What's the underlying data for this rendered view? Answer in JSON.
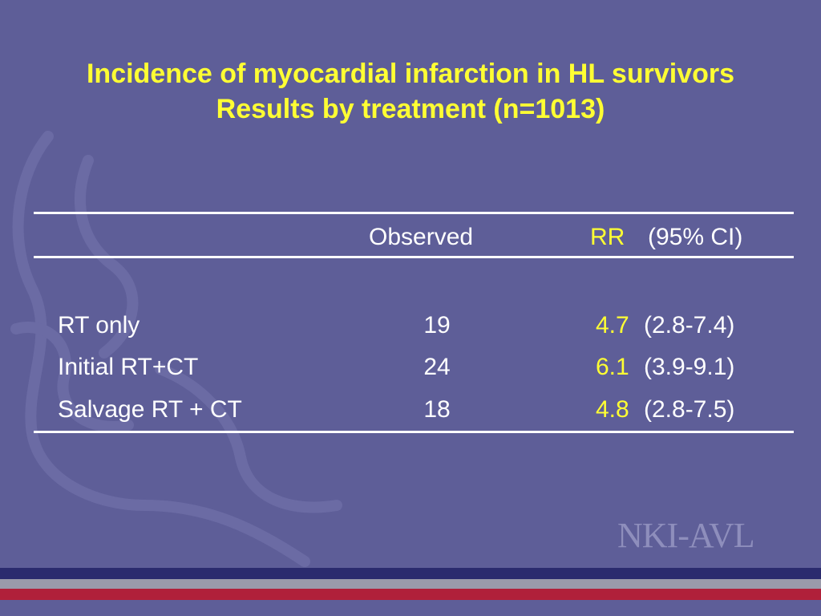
{
  "title": {
    "line1": "Incidence of myocardial infarction in HL survivors",
    "line2": "Results by treatment (n=1013)"
  },
  "table": {
    "headers": {
      "observed": "Observed",
      "rr": "RR",
      "ci": "(95% CI)"
    },
    "rows": [
      {
        "label": "RT only",
        "observed": "19",
        "rr": "4.7",
        "ci": "(2.8-7.4)"
      },
      {
        "label": "Initial RT+CT",
        "observed": "24",
        "rr": "6.1",
        "ci": "(3.9-9.1)"
      },
      {
        "label": "Salvage RT + CT",
        "observed": "18",
        "rr": "4.8",
        "ci": "(2.8-7.5)"
      }
    ]
  },
  "logo": {
    "text": "NKI-AVL"
  },
  "colors": {
    "background": "#5e5e98",
    "accent": "#ffff33",
    "band_navy": "#2b2b6e",
    "band_gray": "#9a9aaa",
    "band_red": "#b0203a"
  }
}
